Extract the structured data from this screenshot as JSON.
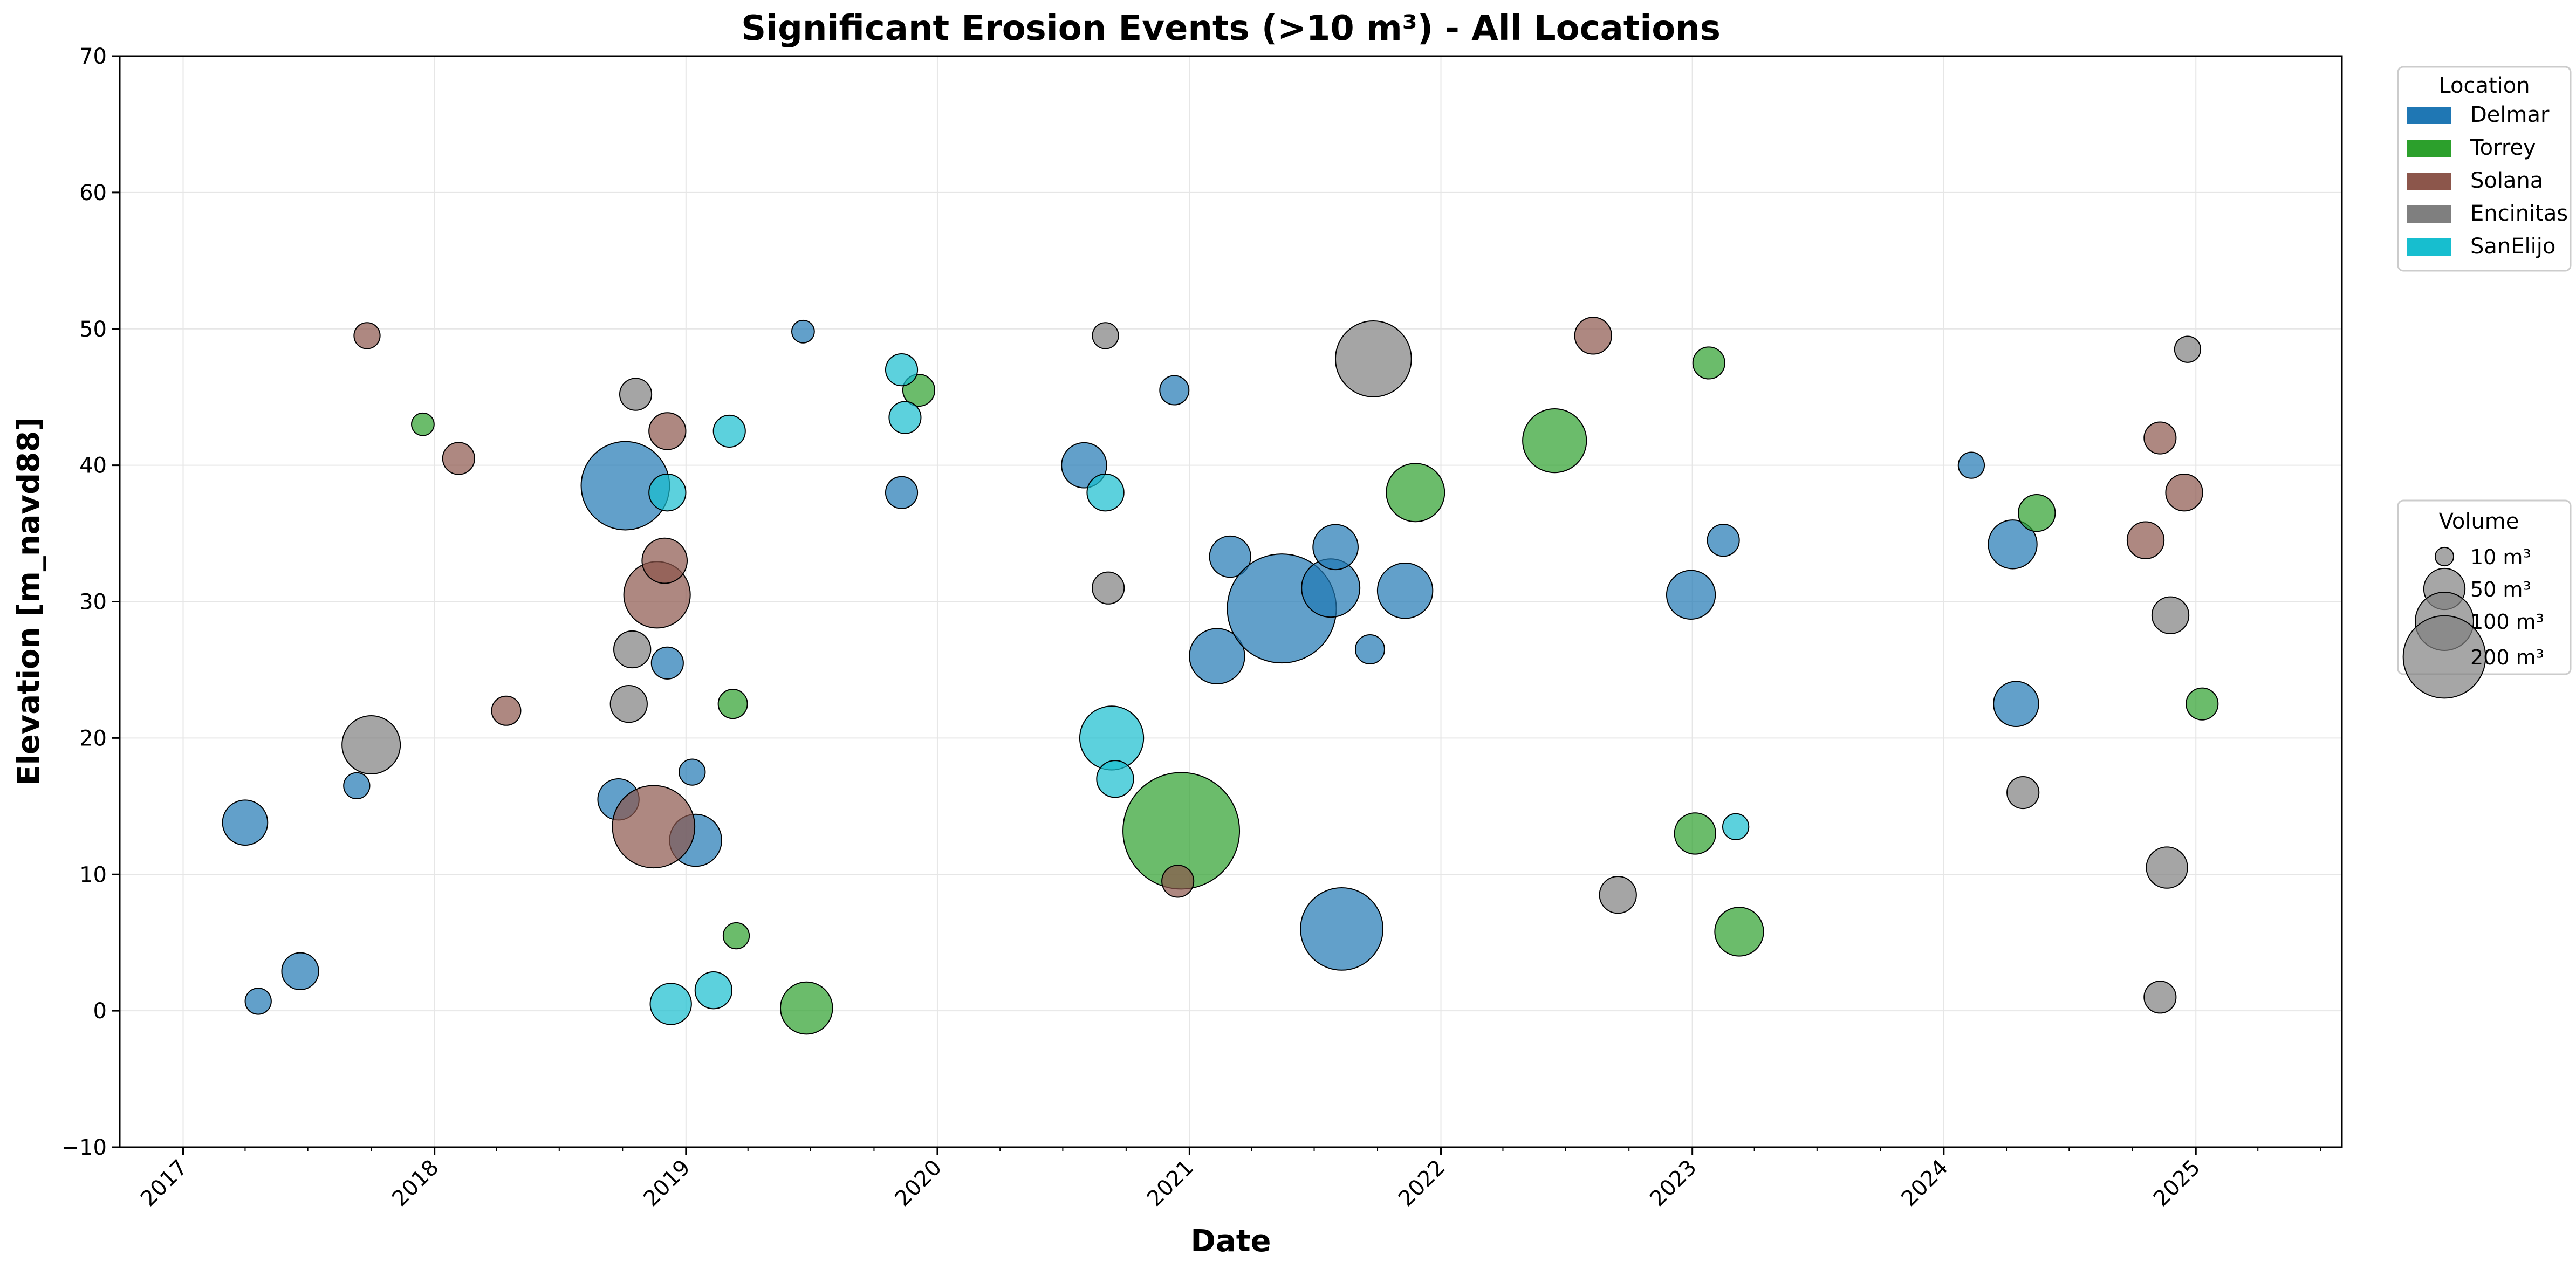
{
  "chart_data": {
    "type": "scatter",
    "title": "Significant Erosion Events (>10 m³) - All Locations",
    "xlabel": "Date",
    "ylabel": "Elevation [m_navd88]",
    "xlim": [
      "2016-10-01",
      "2025-08-01"
    ],
    "ylim": [
      -10,
      70
    ],
    "x_ticks": [
      "2017",
      "2018",
      "2019",
      "2020",
      "2021",
      "2022",
      "2023",
      "2024",
      "2025"
    ],
    "y_ticks": [
      -10,
      0,
      10,
      20,
      30,
      40,
      50,
      60,
      70
    ],
    "grid": true,
    "legend_location": {
      "title": "Location",
      "placement": "outside-right-top",
      "entries": [
        {
          "name": "Delmar",
          "color": "#1f77b4"
        },
        {
          "name": "Torrey",
          "color": "#2ca02c"
        },
        {
          "name": "Solana",
          "color": "#8c564b"
        },
        {
          "name": "Encinitas",
          "color": "#7f7f7f"
        },
        {
          "name": "SanElijo",
          "color": "#17becf"
        }
      ]
    },
    "legend_volume": {
      "title": "Volume",
      "placement": "outside-right-middle",
      "entries": [
        {
          "label": "10 m³",
          "volume": 10
        },
        {
          "label": "50 m³",
          "volume": 50
        },
        {
          "label": "100 m³",
          "volume": 100
        },
        {
          "label": "200 m³",
          "volume": 200
        }
      ]
    },
    "size_encoding": "marker area proportional to volume (m³)",
    "series": [
      {
        "name": "Delmar",
        "points": [
          {
            "x": "2017-04-01",
            "y": 13.8,
            "v": 60
          },
          {
            "x": "2017-04-20",
            "y": 0.7,
            "v": 20
          },
          {
            "x": "2017-06-20",
            "y": 2.9,
            "v": 40
          },
          {
            "x": "2017-09-10",
            "y": 16.5,
            "v": 20
          },
          {
            "x": "2018-09-25",
            "y": 15.5,
            "v": 50
          },
          {
            "x": "2018-10-05",
            "y": 38.5,
            "v": 230
          },
          {
            "x": "2018-12-05",
            "y": 25.5,
            "v": 30
          },
          {
            "x": "2019-01-15",
            "y": 12.5,
            "v": 80
          },
          {
            "x": "2019-01-10",
            "y": 17.5,
            "v": 20
          },
          {
            "x": "2019-06-20",
            "y": 49.8,
            "v": 15
          },
          {
            "x": "2019-11-10",
            "y": 38.0,
            "v": 30
          },
          {
            "x": "2020-08-01",
            "y": 40.0,
            "v": 60
          },
          {
            "x": "2020-12-10",
            "y": 45.5,
            "v": 25
          },
          {
            "x": "2021-02-10",
            "y": 26.0,
            "v": 90
          },
          {
            "x": "2021-03-01",
            "y": 33.3,
            "v": 50
          },
          {
            "x": "2021-05-15",
            "y": 29.5,
            "v": 350
          },
          {
            "x": "2021-07-25",
            "y": 31.0,
            "v": 100
          },
          {
            "x": "2021-08-01",
            "y": 34.0,
            "v": 60
          },
          {
            "x": "2021-08-10",
            "y": 6.0,
            "v": 200
          },
          {
            "x": "2021-09-20",
            "y": 26.5,
            "v": 25
          },
          {
            "x": "2021-11-10",
            "y": 30.8,
            "v": 90
          },
          {
            "x": "2022-12-30",
            "y": 30.5,
            "v": 70
          },
          {
            "x": "2023-02-15",
            "y": 34.5,
            "v": 30
          },
          {
            "x": "2024-04-10",
            "y": 34.2,
            "v": 70
          },
          {
            "x": "2024-04-15",
            "y": 22.5,
            "v": 60
          },
          {
            "x": "2024-02-10",
            "y": 40.0,
            "v": 20
          }
        ]
      },
      {
        "name": "Torrey",
        "points": [
          {
            "x": "2017-12-15",
            "y": 43.0,
            "v": 15
          },
          {
            "x": "2019-03-10",
            "y": 22.5,
            "v": 25
          },
          {
            "x": "2019-03-15",
            "y": 5.5,
            "v": 20
          },
          {
            "x": "2019-06-25",
            "y": 0.2,
            "v": 80
          },
          {
            "x": "2019-12-05",
            "y": 45.5,
            "v": 30
          },
          {
            "x": "2020-12-20",
            "y": 13.2,
            "v": 400
          },
          {
            "x": "2021-11-25",
            "y": 38.0,
            "v": 100
          },
          {
            "x": "2022-06-15",
            "y": 41.8,
            "v": 120
          },
          {
            "x": "2023-03-10",
            "y": 5.8,
            "v": 70
          },
          {
            "x": "2023-01-05",
            "y": 13.0,
            "v": 50
          },
          {
            "x": "2023-01-25",
            "y": 47.5,
            "v": 30
          },
          {
            "x": "2024-05-15",
            "y": 36.5,
            "v": 40
          },
          {
            "x": "2025-01-10",
            "y": 22.5,
            "v": 30
          }
        ]
      },
      {
        "name": "Solana",
        "points": [
          {
            "x": "2017-09-25",
            "y": 49.5,
            "v": 20
          },
          {
            "x": "2018-02-05",
            "y": 40.5,
            "v": 30
          },
          {
            "x": "2018-04-15",
            "y": 22.0,
            "v": 25
          },
          {
            "x": "2018-11-15",
            "y": 13.5,
            "v": 200
          },
          {
            "x": "2018-11-20",
            "y": 30.5,
            "v": 130
          },
          {
            "x": "2018-12-01",
            "y": 33.0,
            "v": 60
          },
          {
            "x": "2018-12-05",
            "y": 42.5,
            "v": 40
          },
          {
            "x": "2020-12-15",
            "y": 9.5,
            "v": 30
          },
          {
            "x": "2022-08-10",
            "y": 49.5,
            "v": 40
          },
          {
            "x": "2024-10-20",
            "y": 34.5,
            "v": 40
          },
          {
            "x": "2024-12-15",
            "y": 38.0,
            "v": 40
          },
          {
            "x": "2024-11-10",
            "y": 42.0,
            "v": 30
          }
        ]
      },
      {
        "name": "Encinitas",
        "points": [
          {
            "x": "2017-10-01",
            "y": 19.5,
            "v": 100
          },
          {
            "x": "2018-10-10",
            "y": 22.5,
            "v": 40
          },
          {
            "x": "2018-10-15",
            "y": 26.5,
            "v": 40
          },
          {
            "x": "2018-10-20",
            "y": 45.2,
            "v": 30
          },
          {
            "x": "2020-09-01",
            "y": 49.5,
            "v": 20
          },
          {
            "x": "2020-09-05",
            "y": 31.0,
            "v": 30
          },
          {
            "x": "2021-09-25",
            "y": 47.8,
            "v": 170
          },
          {
            "x": "2022-09-15",
            "y": 8.5,
            "v": 40
          },
          {
            "x": "2024-04-25",
            "y": 16.0,
            "v": 30
          },
          {
            "x": "2024-11-20",
            "y": 10.5,
            "v": 50
          },
          {
            "x": "2024-11-25",
            "y": 29.0,
            "v": 40
          },
          {
            "x": "2024-11-10",
            "y": 1.0,
            "v": 30
          },
          {
            "x": "2024-12-20",
            "y": 48.5,
            "v": 20
          }
        ]
      },
      {
        "name": "SanElijo",
        "points": [
          {
            "x": "2018-12-05",
            "y": 38.0,
            "v": 40
          },
          {
            "x": "2018-12-10",
            "y": 0.5,
            "v": 50
          },
          {
            "x": "2019-02-10",
            "y": 1.5,
            "v": 40
          },
          {
            "x": "2019-03-05",
            "y": 42.5,
            "v": 30
          },
          {
            "x": "2019-11-15",
            "y": 43.5,
            "v": 30
          },
          {
            "x": "2019-11-10",
            "y": 47.0,
            "v": 30
          },
          {
            "x": "2020-09-01",
            "y": 38.0,
            "v": 40
          },
          {
            "x": "2020-09-10",
            "y": 20.0,
            "v": 120
          },
          {
            "x": "2020-09-15",
            "y": 17.0,
            "v": 40
          },
          {
            "x": "2023-03-05",
            "y": 13.5,
            "v": 20
          }
        ]
      }
    ]
  }
}
